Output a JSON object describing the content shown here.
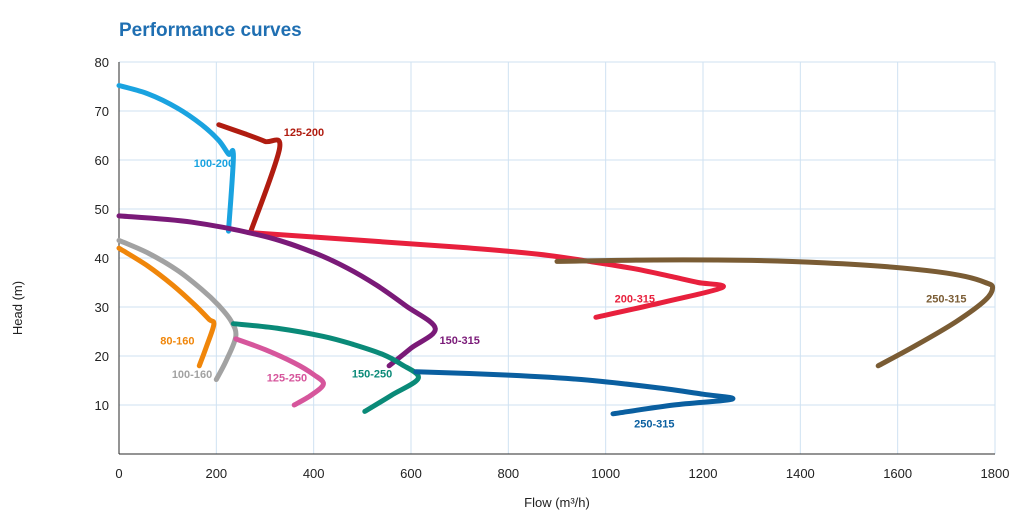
{
  "chart_data": {
    "type": "line",
    "title": "Performance curves",
    "xlabel": "Flow (m³/h)",
    "ylabel": "Head (m)",
    "xlim": [
      0,
      1800
    ],
    "ylim": [
      0,
      80
    ],
    "xticks": [
      0,
      200,
      400,
      600,
      800,
      1000,
      1200,
      1400,
      1600,
      1800
    ],
    "yticks": [
      10,
      20,
      30,
      40,
      50,
      60,
      70,
      80
    ],
    "grid": true,
    "series": [
      {
        "name": "100-200",
        "color": "#1aa3e0",
        "x": [
          0,
          60,
          120,
          170,
          205,
          225,
          235,
          225
        ],
        "y": [
          75.2,
          73.5,
          70.6,
          67.2,
          64.0,
          61.2,
          60.8,
          45.5
        ]
      },
      {
        "name": "125-200",
        "color": "#b01c10",
        "x": [
          205,
          260,
          300,
          330,
          270
        ],
        "y": [
          67.2,
          65.3,
          63.8,
          62.4,
          45.2
        ]
      },
      {
        "name": "200-315",
        "color": "#e8203d",
        "x": [
          265,
          500,
          700,
          860,
          960,
          1060,
          1140,
          1190,
          1240,
          1120,
          980
        ],
        "y": [
          45.2,
          43.6,
          42.2,
          40.8,
          39.4,
          37.8,
          36.1,
          35.0,
          34.0,
          31.0,
          27.9
        ]
      },
      {
        "name": "250-315",
        "color": "#7a5c34",
        "x": [
          900,
          1100,
          1300,
          1450,
          1580,
          1680,
          1740,
          1780,
          1795,
          1780,
          1720,
          1640,
          1560
        ],
        "y": [
          39.3,
          39.6,
          39.5,
          39.0,
          38.2,
          37.2,
          36.2,
          35.0,
          34.0,
          31.4,
          27.0,
          22.3,
          18.0
        ]
      },
      {
        "name": "150-315",
        "color": "#7a1a78",
        "x": [
          0,
          150,
          300,
          400,
          470,
          530,
          590,
          650,
          600,
          555
        ],
        "y": [
          48.6,
          47.3,
          44.4,
          41.1,
          37.9,
          34.4,
          30.2,
          25.6,
          21.6,
          18.0
        ]
      },
      {
        "name": "100-160",
        "color": "#a2a2a2",
        "x": [
          0,
          60,
          120,
          170,
          205,
          230,
          240,
          220,
          200
        ],
        "y": [
          43.6,
          41.0,
          37.5,
          33.6,
          30.3,
          27.2,
          24.0,
          19.0,
          15.2
        ]
      },
      {
        "name": "80-160",
        "color": "#f0860a",
        "x": [
          0,
          60,
          110,
          155,
          185,
          195,
          180,
          165
        ],
        "y": [
          42.0,
          38.3,
          34.5,
          30.5,
          27.5,
          26.5,
          22.0,
          18.0
        ]
      },
      {
        "name": "125-250",
        "color": "#d6569c",
        "x": [
          240,
          300,
          360,
          400,
          420,
          395,
          360
        ],
        "y": [
          23.5,
          21.3,
          18.6,
          16.2,
          14.3,
          12.0,
          10.0
        ]
      },
      {
        "name": "150-250",
        "color": "#0a8a78",
        "x": [
          235,
          330,
          420,
          480,
          540,
          580,
          615,
          560,
          505
        ],
        "y": [
          26.6,
          25.6,
          24.0,
          22.4,
          20.4,
          18.3,
          15.5,
          12.0,
          8.7
        ]
      },
      {
        "name": "250-315",
        "color": "#0a5fa0",
        "x": [
          610,
          800,
          950,
          1100,
          1200,
          1260,
          1140,
          1015
        ],
        "y": [
          16.8,
          16.1,
          15.2,
          13.6,
          12.2,
          11.2,
          10.0,
          8.2
        ]
      }
    ],
    "series_labels": [
      {
        "text": "100-200",
        "x": 195,
        "y": 58.6
      },
      {
        "text": "125-200",
        "x": 380,
        "y": 64.9
      },
      {
        "text": "200-315",
        "x": 1060,
        "y": 30.9
      },
      {
        "text": "250-315",
        "x": 1700,
        "y": 30.9
      },
      {
        "text": "150-315",
        "x": 700,
        "y": 22.5
      },
      {
        "text": "100-160",
        "x": 150,
        "y": 15.5
      },
      {
        "text": "80-160",
        "x": 120,
        "y": 22.3
      },
      {
        "text": "125-250",
        "x": 345,
        "y": 14.8
      },
      {
        "text": "150-250",
        "x": 520,
        "y": 15.6
      },
      {
        "text": "250-315",
        "x": 1100,
        "y": 5.4
      }
    ]
  }
}
